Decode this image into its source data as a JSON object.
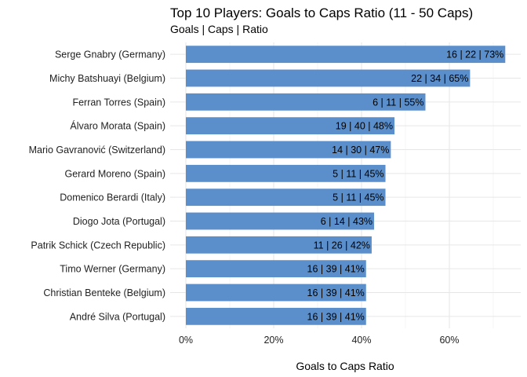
{
  "chart_data": {
    "type": "bar",
    "orientation": "horizontal",
    "title": "Top 10 Players: Goals to Caps Ratio (11 - 50 Caps)",
    "subtitle": "Goals | Caps | Ratio",
    "xlabel": "Goals to Caps Ratio",
    "ylabel": "",
    "xlim": [
      0,
      0.75
    ],
    "x_ticks": [
      0,
      0.2,
      0.4,
      0.6
    ],
    "x_tick_labels": [
      "0%",
      "20%",
      "40%",
      "60%"
    ],
    "grid": true,
    "legend": "none",
    "bar_color": "#5b8fcc",
    "categories": [
      "Serge Gnabry (Germany)",
      "Michy Batshuayi (Belgium)",
      "Ferran Torres (Spain)",
      "Álvaro Morata (Spain)",
      "Mario Gavranović (Switzerland)",
      "Gerard Moreno (Spain)",
      "Domenico Berardi (Italy)",
      "Diogo Jota (Portugal)",
      "Patrik Schick (Czech Republic)",
      "Timo Werner (Germany)",
      "Christian Benteke (Belgium)",
      "André Silva (Portugal)"
    ],
    "values": [
      0.7273,
      0.6471,
      0.5455,
      0.475,
      0.4667,
      0.4545,
      0.4545,
      0.4286,
      0.4231,
      0.4103,
      0.4103,
      0.4103
    ],
    "data_labels": [
      "16 | 22 | 73%",
      "22 | 34 | 65%",
      "6 | 11 | 55%",
      "19 | 40 | 48%",
      "14 | 30 | 47%",
      "5 | 11 | 45%",
      "5 | 11 | 45%",
      "6 | 14 | 43%",
      "11 | 26 | 42%",
      "16 | 39 | 41%",
      "16 | 39 | 41%",
      "16 | 39 | 41%"
    ]
  }
}
